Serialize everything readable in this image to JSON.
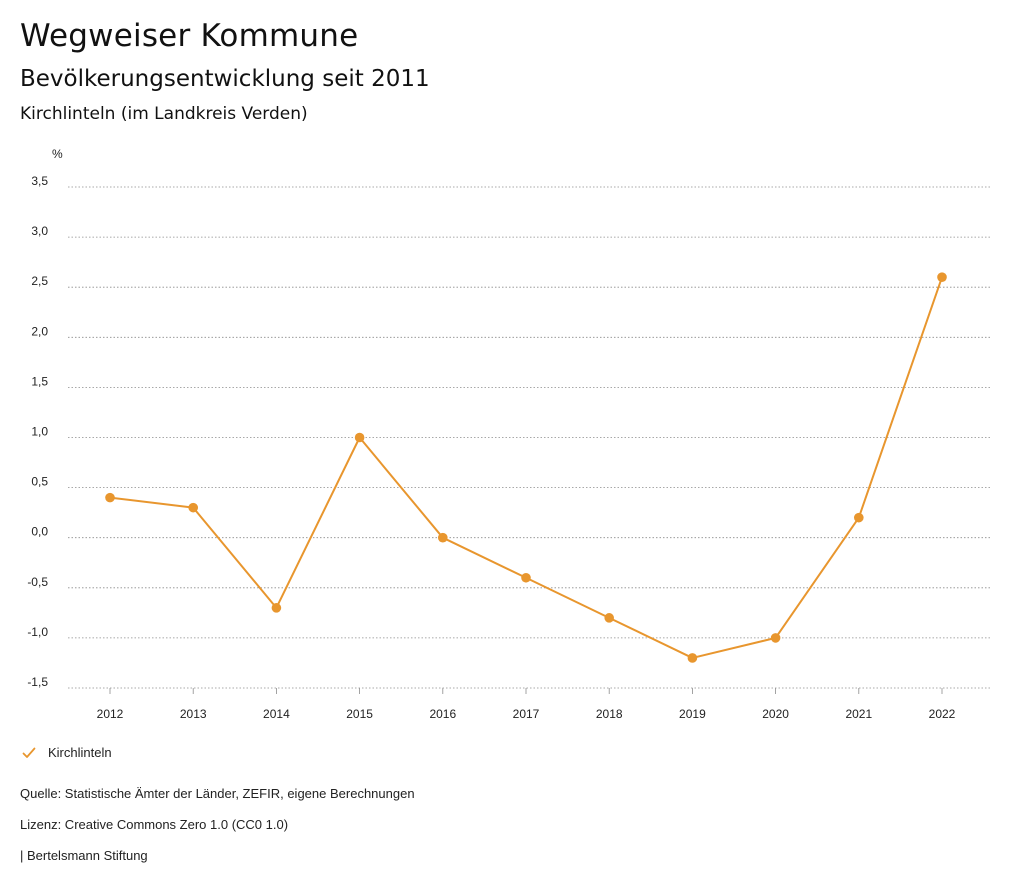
{
  "header": {
    "title": "Wegweiser Kommune",
    "subtitle": "Bevölkerungsentwicklung seit 2011",
    "region": "Kirchlinteln (im Landkreis Verden)"
  },
  "chart_data": {
    "type": "line",
    "ylabel": "%",
    "ylim": [
      -1.5,
      3.5
    ],
    "yticks": [
      3.5,
      3.0,
      2.5,
      2.0,
      1.5,
      1.0,
      0.5,
      0.0,
      -0.5,
      -1.0,
      -1.5
    ],
    "ytick_labels": [
      "3,5",
      "3,0",
      "2,5",
      "2,0",
      "1,5",
      "1,0",
      "0,5",
      "0,0",
      "-0,5",
      "-1,0",
      "-1,5"
    ],
    "categories": [
      "2012",
      "2013",
      "2014",
      "2015",
      "2016",
      "2017",
      "2018",
      "2019",
      "2020",
      "2021",
      "2022"
    ],
    "series": [
      {
        "name": "Kirchlinteln",
        "color": "#E8962E",
        "values": [
          0.4,
          0.3,
          -0.7,
          1.0,
          0.0,
          -0.4,
          -0.8,
          -1.2,
          -1.0,
          0.2,
          2.6
        ]
      }
    ],
    "grid": true,
    "legend": "bottom-left"
  },
  "legend": {
    "label": "Kirchlinteln"
  },
  "footer": {
    "source": "Quelle: Statistische Ämter der Länder, ZEFIR, eigene Berechnungen",
    "license": "Lizenz: Creative Commons Zero 1.0 (CC0 1.0)",
    "publisher": "| Bertelsmann Stiftung"
  }
}
